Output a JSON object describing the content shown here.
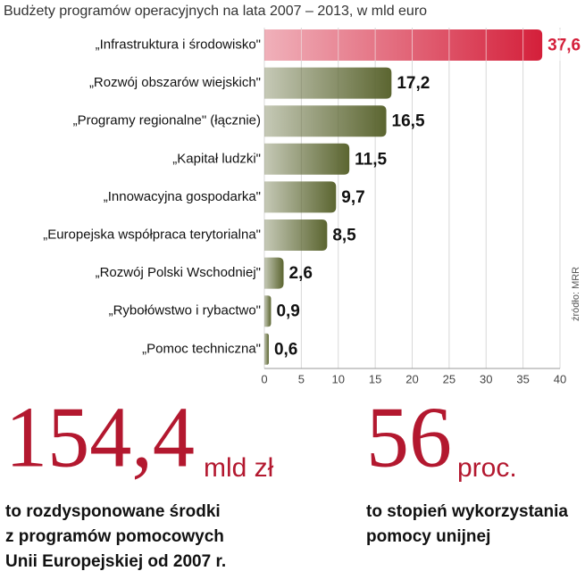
{
  "chart_data": {
    "type": "bar",
    "orientation": "horizontal",
    "title": "Budżety programów operacyjnych na lata 2007 – 2013, w mld euro",
    "categories": [
      "„Infrastruktura i środowisko\"",
      "„Rozwój obszarów wiejskich\"",
      "„Programy regionalne\" (łącznie)",
      "„Kapitał ludzki\"",
      "„Innowacyjna gospodarka\"",
      "„Europejska współpraca terytorialna\"",
      "„Rozwój Polski Wschodniej\"",
      "„Rybołówstwo i rybactwo\"",
      "„Pomoc techniczna\""
    ],
    "values": [
      37.6,
      17.2,
      16.5,
      11.5,
      9.7,
      8.5,
      2.6,
      0.9,
      0.6
    ],
    "value_labels": [
      "37,6",
      "17,2",
      "16,5",
      "11,5",
      "9,7",
      "8,5",
      "2,6",
      "0,9",
      "0,6"
    ],
    "colors": [
      "#d41f3a",
      "#5b6530",
      "#5b6530",
      "#5b6530",
      "#5b6530",
      "#5b6530",
      "#5b6530",
      "#5b6530",
      "#5b6530"
    ],
    "xlim": [
      0,
      40
    ],
    "xticks": [
      0,
      5,
      10,
      15,
      20,
      25,
      30,
      35,
      40
    ],
    "grid": true,
    "source": "źródło: MRR"
  },
  "highlights": [
    {
      "value": "154,4",
      "unit": "mld zł",
      "description": [
        "to rozdysponowane środki",
        "z programów pomocowych",
        "Unii Europejskiej od 2007 r."
      ]
    },
    {
      "value": "56",
      "unit": "proc.",
      "description": [
        "to stopień wykorzystania",
        "pomocy unijnej"
      ]
    }
  ]
}
